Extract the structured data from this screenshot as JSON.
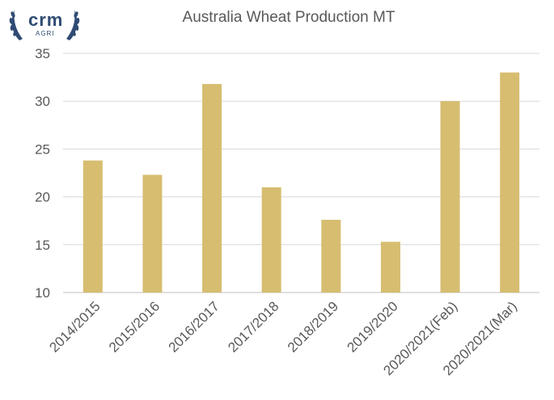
{
  "logo": {
    "name": "crm",
    "sub": "AGRI",
    "color": "#2f4b73"
  },
  "chart_data": {
    "type": "bar",
    "title": "Australia Wheat Production MT",
    "xlabel": "",
    "ylabel": "",
    "categories": [
      "2014/2015",
      "2015/2016",
      "2016/2017",
      "2017/2018",
      "2018/2019",
      "2019/2020",
      "2020/2021(Feb)",
      "2020/2021(Mar)"
    ],
    "values": [
      23.8,
      22.3,
      31.8,
      21.0,
      17.6,
      15.3,
      30.0,
      33.0
    ],
    "ylim": [
      10,
      35
    ],
    "yticks": [
      10,
      15,
      20,
      25,
      30,
      35
    ],
    "grid": true,
    "legend": "none",
    "bar_color": "#d6bd70"
  }
}
